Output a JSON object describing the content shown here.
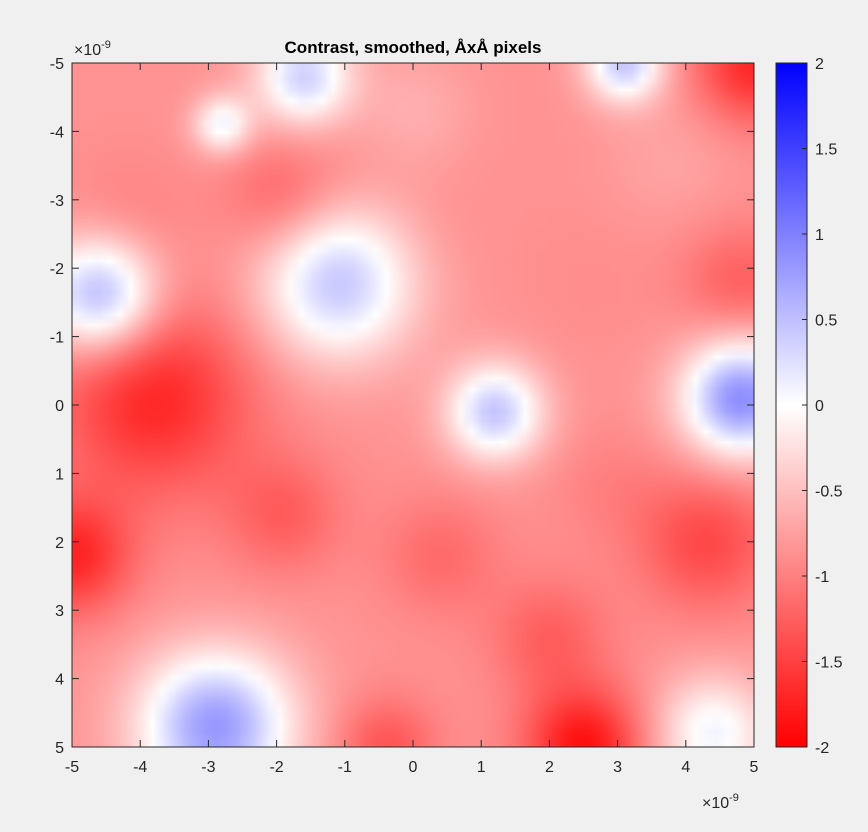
{
  "chart_data": {
    "type": "heatmap",
    "title": "Contrast, smoothed, ÅxÅ pixels",
    "xlim": [
      -5,
      5
    ],
    "ylim": [
      -5,
      5
    ],
    "y_direction": "reversed",
    "axis_exponent_base": "×10",
    "axis_exponent_power": "-9",
    "x_ticks": [
      "-5",
      "-4",
      "-3",
      "-2",
      "-1",
      "0",
      "1",
      "2",
      "3",
      "4",
      "5"
    ],
    "y_ticks": [
      "-5",
      "-4",
      "-3",
      "-2",
      "-1",
      "0",
      "1",
      "2",
      "3",
      "4",
      "5"
    ],
    "grid": false,
    "colorbar": {
      "min": -2,
      "max": 2,
      "ticks": [
        "2",
        "1.5",
        "1",
        "0.5",
        "0",
        "-0.5",
        "-1",
        "-1.5",
        "-2"
      ],
      "colormap": [
        "#ff0000",
        "#ffffff",
        "#0000ff"
      ],
      "placement": "right"
    },
    "field_features": [
      {
        "x": -4.6,
        "y": -1.6,
        "value": 0.8,
        "spread": 0.6
      },
      {
        "x": -1.1,
        "y": -1.8,
        "value": 0.6,
        "spread": 0.8
      },
      {
        "x": 1.2,
        "y": 0.1,
        "value": 0.6,
        "spread": 0.5
      },
      {
        "x": 4.8,
        "y": -0.1,
        "value": 1.1,
        "spread": 0.6
      },
      {
        "x": -2.9,
        "y": 4.7,
        "value": 1.0,
        "spread": 0.8
      },
      {
        "x": -1.6,
        "y": -4.8,
        "value": 0.5,
        "spread": 0.5
      },
      {
        "x": 3.1,
        "y": -5.0,
        "value": 0.6,
        "spread": 0.4
      },
      {
        "x": -2.8,
        "y": -4.1,
        "value": 0.2,
        "spread": 0.3
      },
      {
        "x": 4.4,
        "y": 4.8,
        "value": 0.2,
        "spread": 0.6
      },
      {
        "x": -3.8,
        "y": -0.1,
        "value": -1.8,
        "spread": 1.0
      },
      {
        "x": -5.0,
        "y": 2.2,
        "value": -1.8,
        "spread": 0.6
      },
      {
        "x": 4.3,
        "y": 2.0,
        "value": -1.5,
        "spread": 0.7
      },
      {
        "x": -1.9,
        "y": -3.0,
        "value": -1.3,
        "spread": 0.6
      },
      {
        "x": -1.9,
        "y": 1.6,
        "value": -1.3,
        "spread": 0.6
      },
      {
        "x": 2.5,
        "y": 5.0,
        "value": -2.0,
        "spread": 0.6
      },
      {
        "x": 5.0,
        "y": -5.0,
        "value": -1.8,
        "spread": 0.6
      },
      {
        "x": -0.4,
        "y": 5.0,
        "value": -1.4,
        "spread": 0.5
      },
      {
        "x": 2.0,
        "y": 3.4,
        "value": -1.3,
        "spread": 0.6
      },
      {
        "x": 0.4,
        "y": 2.2,
        "value": -1.2,
        "spread": 0.6
      },
      {
        "x": 4.8,
        "y": -1.8,
        "value": -1.3,
        "spread": 0.6
      },
      {
        "x": 0.0,
        "y": -2.5,
        "value": -0.9,
        "spread": 0.7
      },
      {
        "x": -0.9,
        "y": -3.5,
        "value": -0.9,
        "spread": 0.6
      },
      {
        "x": 2.6,
        "y": -1.8,
        "value": -0.9,
        "spread": 0.7
      },
      {
        "x": -4.2,
        "y": -2.8,
        "value": -1.0,
        "spread": 0.6
      },
      {
        "x": -3.0,
        "y": 3.4,
        "value": -0.9,
        "spread": 0.6
      },
      {
        "x": 2.9,
        "y": 1.2,
        "value": -1.0,
        "spread": 0.6
      },
      {
        "x": 0.0,
        "y": -4.3,
        "value": -0.6,
        "spread": 0.6
      },
      {
        "x": 3.8,
        "y": -3.6,
        "value": -0.7,
        "spread": 0.7
      }
    ]
  }
}
